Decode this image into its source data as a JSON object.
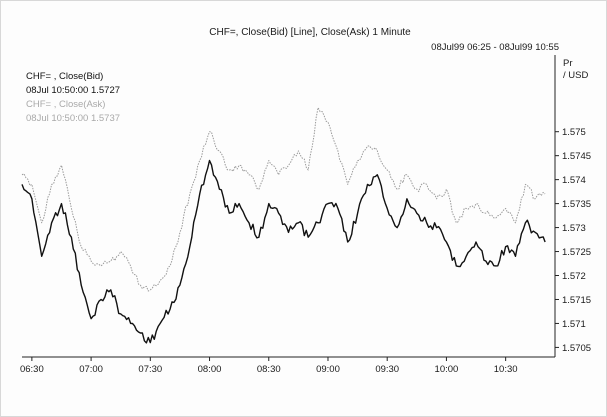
{
  "header": {
    "title": "CHF=, Close(Bid) [Line], Close(Ask) 1 Minute",
    "range": "08Jul99 06:25 - 08Jul99 10:55",
    "units_line1": "Pr",
    "units_line2": "/ USD"
  },
  "legend": {
    "bid_label": "CHF= , Close(Bid)",
    "bid_value": "08Jul 10:50:00 1.5727",
    "ask_label": "CHF= , Close(Ask)",
    "ask_value": "08Jul 10:50:00 1.5737"
  },
  "colors": {
    "bid": "#111111",
    "ask": "#9a9a9a",
    "axis": "#222222",
    "frame": "#d8d8d8"
  },
  "chart_data": {
    "type": "line",
    "title": "CHF=, Close(Bid) [Line], Close(Ask) 1 Minute",
    "xlabel": "",
    "ylabel": "Pr / USD",
    "x_ticks": [
      "06:30",
      "07:00",
      "07:30",
      "08:00",
      "08:30",
      "09:00",
      "09:30",
      "10:00",
      "10:30"
    ],
    "y_ticks": [
      "1.575",
      "1.5745",
      "1.574",
      "1.5735",
      "1.573",
      "1.5725",
      "1.572",
      "1.5715",
      "1.571",
      "1.5705"
    ],
    "ylim": [
      1.5703,
      1.5766
    ],
    "x_range": [
      "06:25",
      "10:55"
    ],
    "grid": false,
    "legend_position": "top-left",
    "series": [
      {
        "name": "CHF= , Close(Bid)",
        "style": "solid",
        "points": [
          [
            "06:25",
            1.5739
          ],
          [
            "06:30",
            1.5736
          ],
          [
            "06:35",
            1.5724
          ],
          [
            "06:40",
            1.5731
          ],
          [
            "06:45",
            1.5735
          ],
          [
            "06:50",
            1.5728
          ],
          [
            "06:55",
            1.5718
          ],
          [
            "07:00",
            1.5711
          ],
          [
            "07:05",
            1.5715
          ],
          [
            "07:10",
            1.5717
          ],
          [
            "07:15",
            1.5712
          ],
          [
            "07:20",
            1.571
          ],
          [
            "07:25",
            1.5708
          ],
          [
            "07:30",
            1.5706
          ],
          [
            "07:35",
            1.571
          ],
          [
            "07:40",
            1.5713
          ],
          [
            "07:45",
            1.5718
          ],
          [
            "07:50",
            1.5726
          ],
          [
            "07:55",
            1.5737
          ],
          [
            "08:00",
            1.5744
          ],
          [
            "08:05",
            1.5738
          ],
          [
            "08:10",
            1.5733
          ],
          [
            "08:15",
            1.5735
          ],
          [
            "08:20",
            1.5731
          ],
          [
            "08:25",
            1.5728
          ],
          [
            "08:30",
            1.5735
          ],
          [
            "08:35",
            1.5733
          ],
          [
            "08:40",
            1.5729
          ],
          [
            "08:45",
            1.5731
          ],
          [
            "08:50",
            1.5728
          ],
          [
            "08:55",
            1.5731
          ],
          [
            "09:00",
            1.5735
          ],
          [
            "09:05",
            1.5734
          ],
          [
            "09:10",
            1.5727
          ],
          [
            "09:15",
            1.5733
          ],
          [
            "09:20",
            1.5739
          ],
          [
            "09:25",
            1.5741
          ],
          [
            "09:30",
            1.5734
          ],
          [
            "09:35",
            1.573
          ],
          [
            "09:40",
            1.5736
          ],
          [
            "09:45",
            1.5733
          ],
          [
            "09:50",
            1.5731
          ],
          [
            "09:55",
            1.573
          ],
          [
            "10:00",
            1.5727
          ],
          [
            "10:05",
            1.5722
          ],
          [
            "10:10",
            1.5724
          ],
          [
            "10:15",
            1.5727
          ],
          [
            "10:20",
            1.5723
          ],
          [
            "10:25",
            1.5722
          ],
          [
            "10:30",
            1.5726
          ],
          [
            "10:35",
            1.5724
          ],
          [
            "10:40",
            1.5731
          ],
          [
            "10:45",
            1.5729
          ],
          [
            "10:50",
            1.5727
          ]
        ]
      },
      {
        "name": "CHF= , Close(Ask)",
        "style": "dotted",
        "points": [
          [
            "06:25",
            1.5741
          ],
          [
            "06:30",
            1.5739
          ],
          [
            "06:35",
            1.5731
          ],
          [
            "06:40",
            1.5739
          ],
          [
            "06:45",
            1.5743
          ],
          [
            "06:50",
            1.5734
          ],
          [
            "06:55",
            1.5726
          ],
          [
            "07:00",
            1.5723
          ],
          [
            "07:05",
            1.5722
          ],
          [
            "07:10",
            1.5723
          ],
          [
            "07:15",
            1.5725
          ],
          [
            "07:20",
            1.5722
          ],
          [
            "07:25",
            1.5718
          ],
          [
            "07:30",
            1.5717
          ],
          [
            "07:35",
            1.5719
          ],
          [
            "07:40",
            1.5722
          ],
          [
            "07:45",
            1.5729
          ],
          [
            "07:50",
            1.5737
          ],
          [
            "07:55",
            1.5744
          ],
          [
            "08:00",
            1.575
          ],
          [
            "08:05",
            1.5746
          ],
          [
            "08:10",
            1.5742
          ],
          [
            "08:15",
            1.5743
          ],
          [
            "08:20",
            1.5741
          ],
          [
            "08:25",
            1.5738
          ],
          [
            "08:30",
            1.5744
          ],
          [
            "08:35",
            1.5741
          ],
          [
            "08:40",
            1.5743
          ],
          [
            "08:45",
            1.5746
          ],
          [
            "08:50",
            1.5742
          ],
          [
            "08:55",
            1.5755
          ],
          [
            "09:00",
            1.5752
          ],
          [
            "09:05",
            1.5746
          ],
          [
            "09:10",
            1.5739
          ],
          [
            "09:15",
            1.5744
          ],
          [
            "09:20",
            1.5747
          ],
          [
            "09:25",
            1.5746
          ],
          [
            "09:30",
            1.5742
          ],
          [
            "09:35",
            1.5738
          ],
          [
            "09:40",
            1.5741
          ],
          [
            "09:45",
            1.5738
          ],
          [
            "09:50",
            1.5739
          ],
          [
            "09:55",
            1.5736
          ],
          [
            "10:00",
            1.5738
          ],
          [
            "10:05",
            1.5731
          ],
          [
            "10:10",
            1.5734
          ],
          [
            "10:15",
            1.5735
          ],
          [
            "10:20",
            1.5733
          ],
          [
            "10:25",
            1.5732
          ],
          [
            "10:30",
            1.5734
          ],
          [
            "10:35",
            1.5731
          ],
          [
            "10:40",
            1.5739
          ],
          [
            "10:45",
            1.5736
          ],
          [
            "10:50",
            1.5737
          ]
        ]
      }
    ]
  }
}
